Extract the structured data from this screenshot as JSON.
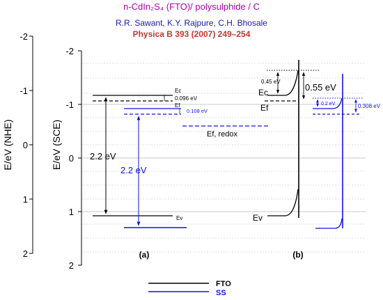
{
  "header": {
    "title": "n-CdIn₂S₄ (FTO)/ polysulphide / C",
    "authors": "R.R. Sawant, K.Y. Rajpure, C.H. Bhosale",
    "reference": "Physica B 393 (2007) 249–254"
  },
  "axes": {
    "nhe_label": "E/eV (NHE)",
    "nhe_ticks": [
      "-2",
      "-1",
      "0",
      "1",
      "2"
    ],
    "sce_label": "E/eV (SCE)",
    "sce_ticks": [
      "-2",
      "-1",
      "0",
      "1",
      "2"
    ]
  },
  "panel_a": {
    "label": "(a)",
    "ec": "Ec",
    "ef": "Ef",
    "ev": "Ev",
    "d_fto": "0.096 eV",
    "d_ss": "0.108 eV",
    "gap_fto": "2.2 eV",
    "gap_ss": "2.2 eV",
    "ef_redox": "Ef, redox"
  },
  "panel_b": {
    "label": "(b)",
    "ec": "Ec",
    "ef": "Ef",
    "ev": "Ev",
    "bend_fto": "0.45 eV",
    "barrier": "0.55 eV",
    "bend_ss": "0.2 eV",
    "d_ss": "0.308 eV"
  },
  "legend": {
    "fto": "FTO",
    "ss": "SS"
  },
  "colors": {
    "fto": "#000000",
    "ss": "#1010dd",
    "title": "#b000b0",
    "authors": "#1a1ab0",
    "reference": "#c0392b"
  }
}
